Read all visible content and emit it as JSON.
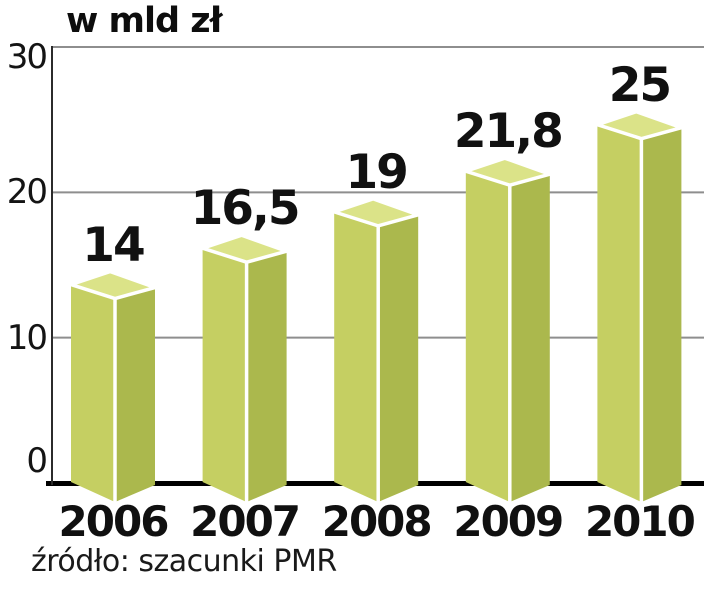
{
  "chart_data": {
    "type": "bar",
    "title": "w mld zł",
    "source": "źródło: szacunki PMR",
    "categories": [
      "2006",
      "2007",
      "2008",
      "2009",
      "2010"
    ],
    "values": [
      14,
      16.5,
      19,
      21.8,
      25
    ],
    "value_labels": [
      "14",
      "16,5",
      "19",
      "21,8",
      "25"
    ],
    "xlabel": "",
    "ylabel": "",
    "ylim": [
      0,
      30
    ],
    "yticks": [
      0,
      10,
      20,
      30
    ],
    "grid": true,
    "legend": false,
    "style": "3d-columns",
    "colors": {
      "bar_top": "#dbe388",
      "bar_left": "#c5cf62",
      "bar_right": "#abb84d",
      "edge": "#ffffff",
      "gridline": "#8e8e8e",
      "axis_line": "#2b2b2b",
      "baseline": "#000000",
      "text": "#111111"
    }
  }
}
